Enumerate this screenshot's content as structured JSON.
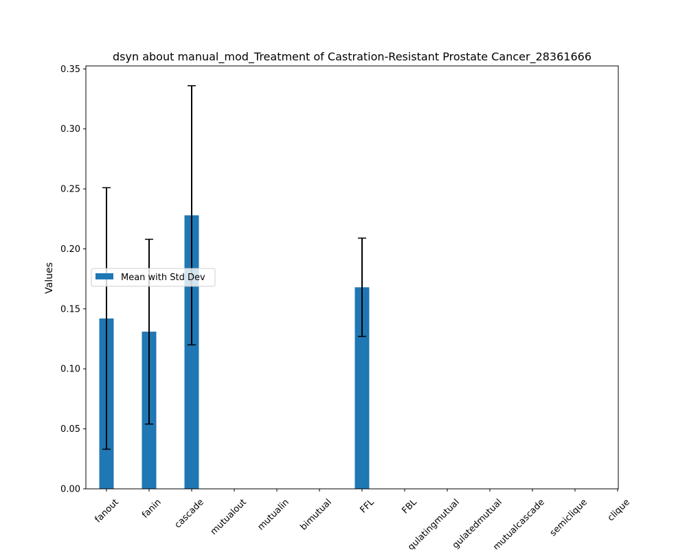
{
  "colors": {
    "bar": "#1f77b4",
    "errorbar": "#000000",
    "axis": "#000000",
    "background": "#ffffff"
  },
  "chart_data": {
    "type": "bar",
    "title": "dsyn about manual_mod_Treatment of Castration-Resistant Prostate Cancer_28361666",
    "xlabel": "",
    "ylabel": "Values",
    "ylim": [
      0,
      0.3525
    ],
    "yticks": [
      0.0,
      0.05,
      0.1,
      0.15,
      0.2,
      0.25,
      0.3,
      0.35
    ],
    "ytick_labels": [
      "0.00",
      "0.05",
      "0.10",
      "0.15",
      "0.20",
      "0.25",
      "0.30",
      "0.35"
    ],
    "grid": false,
    "legend": {
      "placement": "center-left",
      "entries": [
        "Mean with Std Dev"
      ]
    },
    "categories": [
      "fanout",
      "fanin",
      "cascade",
      "mutualout",
      "mutualin",
      "bimutual",
      "FFL",
      "FBL",
      "regulatingmutual",
      "regulatedmutual",
      "mutualcascade",
      "semiclique",
      "clique"
    ],
    "category_labels_visible": [
      "fanout",
      "fanin",
      "cascade",
      "mutualout",
      "mutualin",
      "bimutual",
      "FFL",
      "FBL",
      "gulatingmutual",
      "gulatedmutual",
      "mutualcascade",
      "semiclique",
      "clique"
    ],
    "series": [
      {
        "name": "Mean with Std Dev",
        "values": [
          0.142,
          0.131,
          0.228,
          0,
          0,
          0,
          0.168,
          0,
          0,
          0,
          0,
          0,
          0
        ],
        "errors": [
          0.109,
          0.077,
          0.108,
          null,
          null,
          null,
          0.041,
          null,
          null,
          null,
          null,
          null,
          null
        ]
      }
    ]
  }
}
